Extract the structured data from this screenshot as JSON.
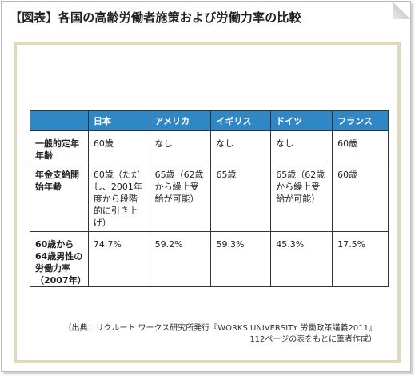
{
  "title": "【図表】各国の高齢労働者施策および労働力率の比較",
  "table": {
    "headers": [
      "",
      "日本",
      "アメリカ",
      "イギリス",
      "ドイツ",
      "フランス"
    ],
    "rows": [
      {
        "label": "一般的定年年齢",
        "cells": [
          "60歳",
          "なし",
          "なし",
          "なし",
          "60歳"
        ]
      },
      {
        "label": "年金支給開始年齢",
        "cells": [
          "60歳（ただし、2001年度から段階的に引き上げ）",
          "65歳（62歳から繰上受給が可能）",
          "65歳",
          "65歳（62歳から繰上受給が可能）",
          "60歳"
        ]
      },
      {
        "label": "60歳から64歳男性の労働力率（2007年）",
        "cells": [
          "74.7%",
          "59.2%",
          "59.3%",
          "45.3%",
          "17.5%"
        ]
      }
    ]
  },
  "source": {
    "line1": "（出典：リクルート ワークス研究所発行『WORKS UNIVERSITY 労働政策講義2011』",
    "line2": "112ページの表をもとに筆者作成）"
  }
}
